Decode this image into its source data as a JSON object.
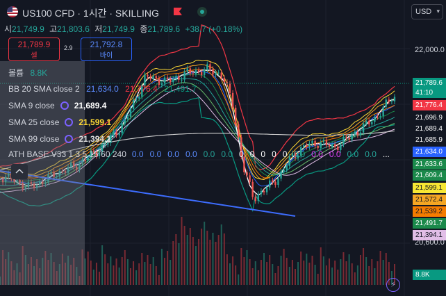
{
  "header": {
    "title": "US100 CFD · 1시간 · SKILLING",
    "ohlc": [
      {
        "key": "시",
        "value": "21,749.9"
      },
      {
        "key": "고",
        "value": "21,803.6"
      },
      {
        "key": "저",
        "value": "21,749.9"
      },
      {
        "key": "종",
        "value": "21,789.6"
      }
    ],
    "change": "+38.7 (+0.18%)"
  },
  "trade": {
    "sell_price": "21,789.9",
    "sell_label": "셀",
    "spread": "2.9",
    "buy_price": "21,792.8",
    "buy_label": "바이"
  },
  "legend": {
    "volume_label": "볼륨",
    "volume_value": "8.8K",
    "bb_label": "BB 20 SMA close 2",
    "bb_values": [
      "21,634.0",
      "21,776.4",
      "21,491.7"
    ],
    "sma9_label": "SMA 9 close",
    "sma9_value": "21,689.4",
    "sma25_label": "SMA 25 close",
    "sma25_value": "21,599.1",
    "sma99_label": "SMA 99 close",
    "sma99_value": "21,394.1",
    "ath_label": "ATH BASE V33 1 3 5 15 60 240",
    "ath_values": [
      "0.0",
      "0.0",
      "0.0",
      "0.0",
      "0.0",
      "0.0",
      "0",
      "0",
      "0",
      "0",
      "0",
      "0.0",
      "0.0",
      "0.0",
      "0.0",
      "0.0",
      "..."
    ]
  },
  "price_axis": {
    "currency": "USD",
    "labels": [
      "22,000.0",
      "20,600.0"
    ],
    "tags": [
      {
        "text": "21,789.6",
        "bg": "#089981",
        "fg": "#ffffff"
      },
      {
        "text": "41:10",
        "bg": "#089981",
        "fg": "#ffffff"
      },
      {
        "text": "21,776.4",
        "bg": "#f23645",
        "fg": "#ffffff"
      },
      {
        "text": "21,696.9",
        "bg": "#131722",
        "fg": "#ffffff"
      },
      {
        "text": "21,689.4",
        "bg": "#131722",
        "fg": "#ffffff"
      },
      {
        "text": "21,685.9",
        "bg": "#131722",
        "fg": "#ffffff"
      },
      {
        "text": "21,634.0",
        "bg": "#2962ff",
        "fg": "#ffffff"
      },
      {
        "text": "21,633.6",
        "bg": "#1b8a4b",
        "fg": "#ffffff"
      },
      {
        "text": "21,609.4",
        "bg": "#1b8a4b",
        "fg": "#ffffff"
      },
      {
        "text": "21,599.1",
        "bg": "#f7e733",
        "fg": "#131722"
      },
      {
        "text": "21,572.4",
        "bg": "#f5a623",
        "fg": "#131722"
      },
      {
        "text": "21,539.2",
        "bg": "#f57c00",
        "fg": "#131722"
      },
      {
        "text": "21,491.7",
        "bg": "#1b8a4b",
        "fg": "#ffffff"
      },
      {
        "text": "21,394.1",
        "bg": "#e1bee7",
        "fg": "#131722"
      },
      {
        "text": "8.8K",
        "bg": "#089981",
        "fg": "#ffffff"
      }
    ]
  },
  "colors": {
    "background": "#131722",
    "up": "#26a69a",
    "down": "#ef5350",
    "bb_upper": "#f23645",
    "bb_basis": "#2962ff",
    "bb_lower": "#089981",
    "sma9": "#ffffff",
    "sma25": "#fdd835",
    "sma99": "#e0e0e0",
    "trendline": "#3d6dff"
  },
  "icons": {
    "flag": "us-flag-icon",
    "market": "red-flag-icon",
    "status": "live-dot-icon",
    "collapse": "chevron-up-icon",
    "indicator": "cycle-icon",
    "alert": "lightning-icon"
  }
}
